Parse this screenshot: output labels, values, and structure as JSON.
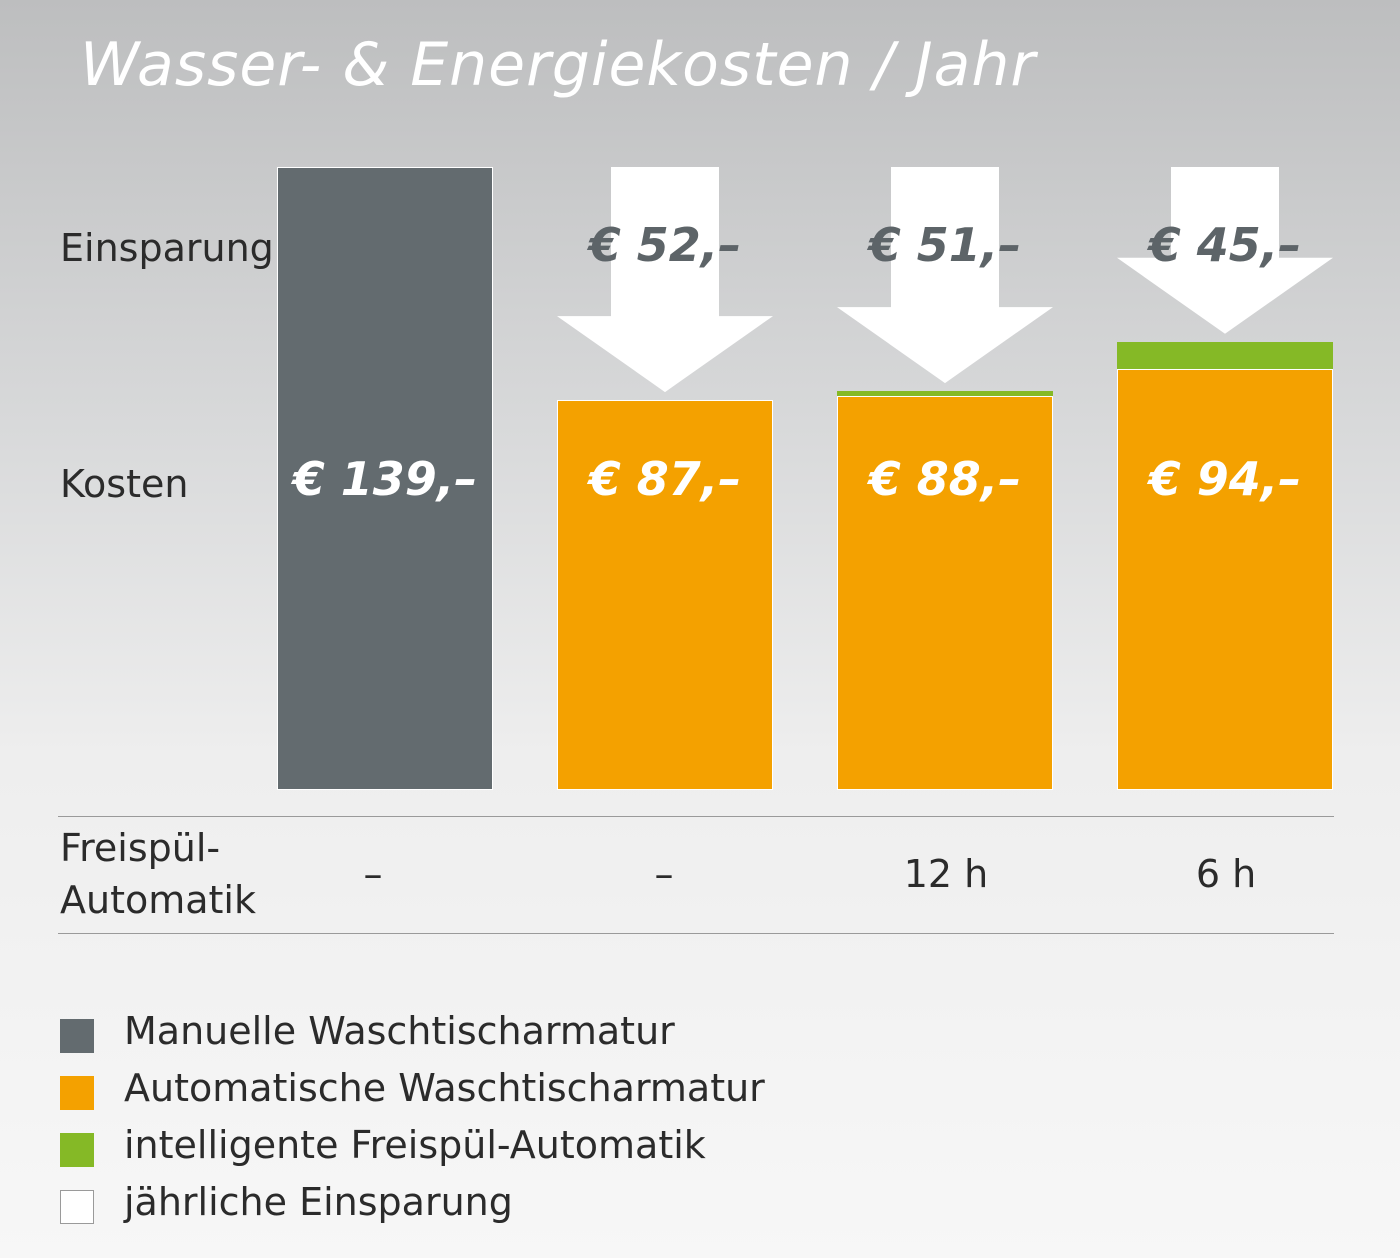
{
  "title": "Wasser- & Energiekosten / Jahr",
  "row_labels": {
    "savings": "Einsparung",
    "costs": "Kosten"
  },
  "freispuel": {
    "label_line1": "Freispül-",
    "label_line2": "Automatik",
    "values": [
      "–",
      "–",
      "12 h",
      "6 h"
    ]
  },
  "chart_data": {
    "type": "bar",
    "title": "Wasser- & Energiekosten / Jahr",
    "unit": "€",
    "categories": [
      "–",
      "–",
      "12 h",
      "6 h"
    ],
    "series": [
      {
        "name": "Manuelle Waschtischarmatur",
        "values": [
          139,
          null,
          null,
          null
        ],
        "color": "#636b6f"
      },
      {
        "name": "Automatische Waschtischarmatur",
        "values": [
          null,
          87,
          88,
          94
        ],
        "color": "#f4a100"
      },
      {
        "name": "intelligente Freispül-Automatik",
        "values": [
          null,
          0,
          1,
          6
        ],
        "color": "#85b926"
      },
      {
        "name": "jährliche Einsparung",
        "values": [
          null,
          52,
          51,
          45
        ],
        "color": "#ffffff"
      }
    ],
    "cost_labels": [
      "€ 139,–",
      "€ 87,–",
      "€ 88,–",
      "€ 94,–"
    ],
    "savings_labels": [
      null,
      "€ 52,–",
      "€ 51,–",
      "€ 45,–"
    ],
    "ylim": [
      0,
      139
    ]
  },
  "legend": [
    {
      "label": "Manuelle Waschtischarmatur",
      "color": "#636b6f"
    },
    {
      "label": "Automatische Waschtischarmatur",
      "color": "#f4a100"
    },
    {
      "label": "intelligente Freispül-Automatik",
      "color": "#85b926"
    },
    {
      "label": "jährliche Einsparung",
      "color": "#ffffff"
    }
  ]
}
